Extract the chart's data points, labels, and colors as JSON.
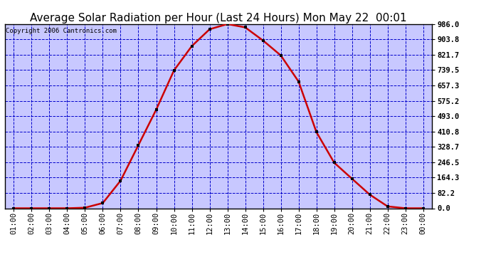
{
  "title": "Average Solar Radiation per Hour (Last 24 Hours) Mon May 22  00:01",
  "copyright": "Copyright 2006 Cantronics.com",
  "outer_bg": "#ffffff",
  "plot_bg_color": "#c8c8ff",
  "line_color": "#cc0000",
  "marker_color": "#000000",
  "grid_color": "#0000cc",
  "hours": [
    "01:00",
    "02:00",
    "03:00",
    "04:00",
    "05:00",
    "06:00",
    "07:00",
    "08:00",
    "09:00",
    "10:00",
    "11:00",
    "12:00",
    "13:00",
    "14:00",
    "15:00",
    "16:00",
    "17:00",
    "18:00",
    "19:00",
    "20:00",
    "21:00",
    "22:00",
    "23:00",
    "00:00"
  ],
  "values": [
    0.0,
    0.0,
    0.0,
    0.0,
    3.0,
    28.0,
    148.0,
    338.0,
    528.0,
    738.0,
    868.0,
    958.0,
    986.0,
    968.0,
    898.0,
    818.0,
    678.0,
    408.0,
    244.0,
    158.0,
    73.0,
    10.0,
    0.0,
    0.0
  ],
  "yticks": [
    0.0,
    82.2,
    164.3,
    246.5,
    328.7,
    410.8,
    493.0,
    575.2,
    657.3,
    739.5,
    821.7,
    903.8,
    986.0
  ],
  "ylim": [
    0.0,
    986.0
  ],
  "title_fontsize": 11,
  "tick_fontsize": 7.5,
  "copyright_fontsize": 6.5
}
